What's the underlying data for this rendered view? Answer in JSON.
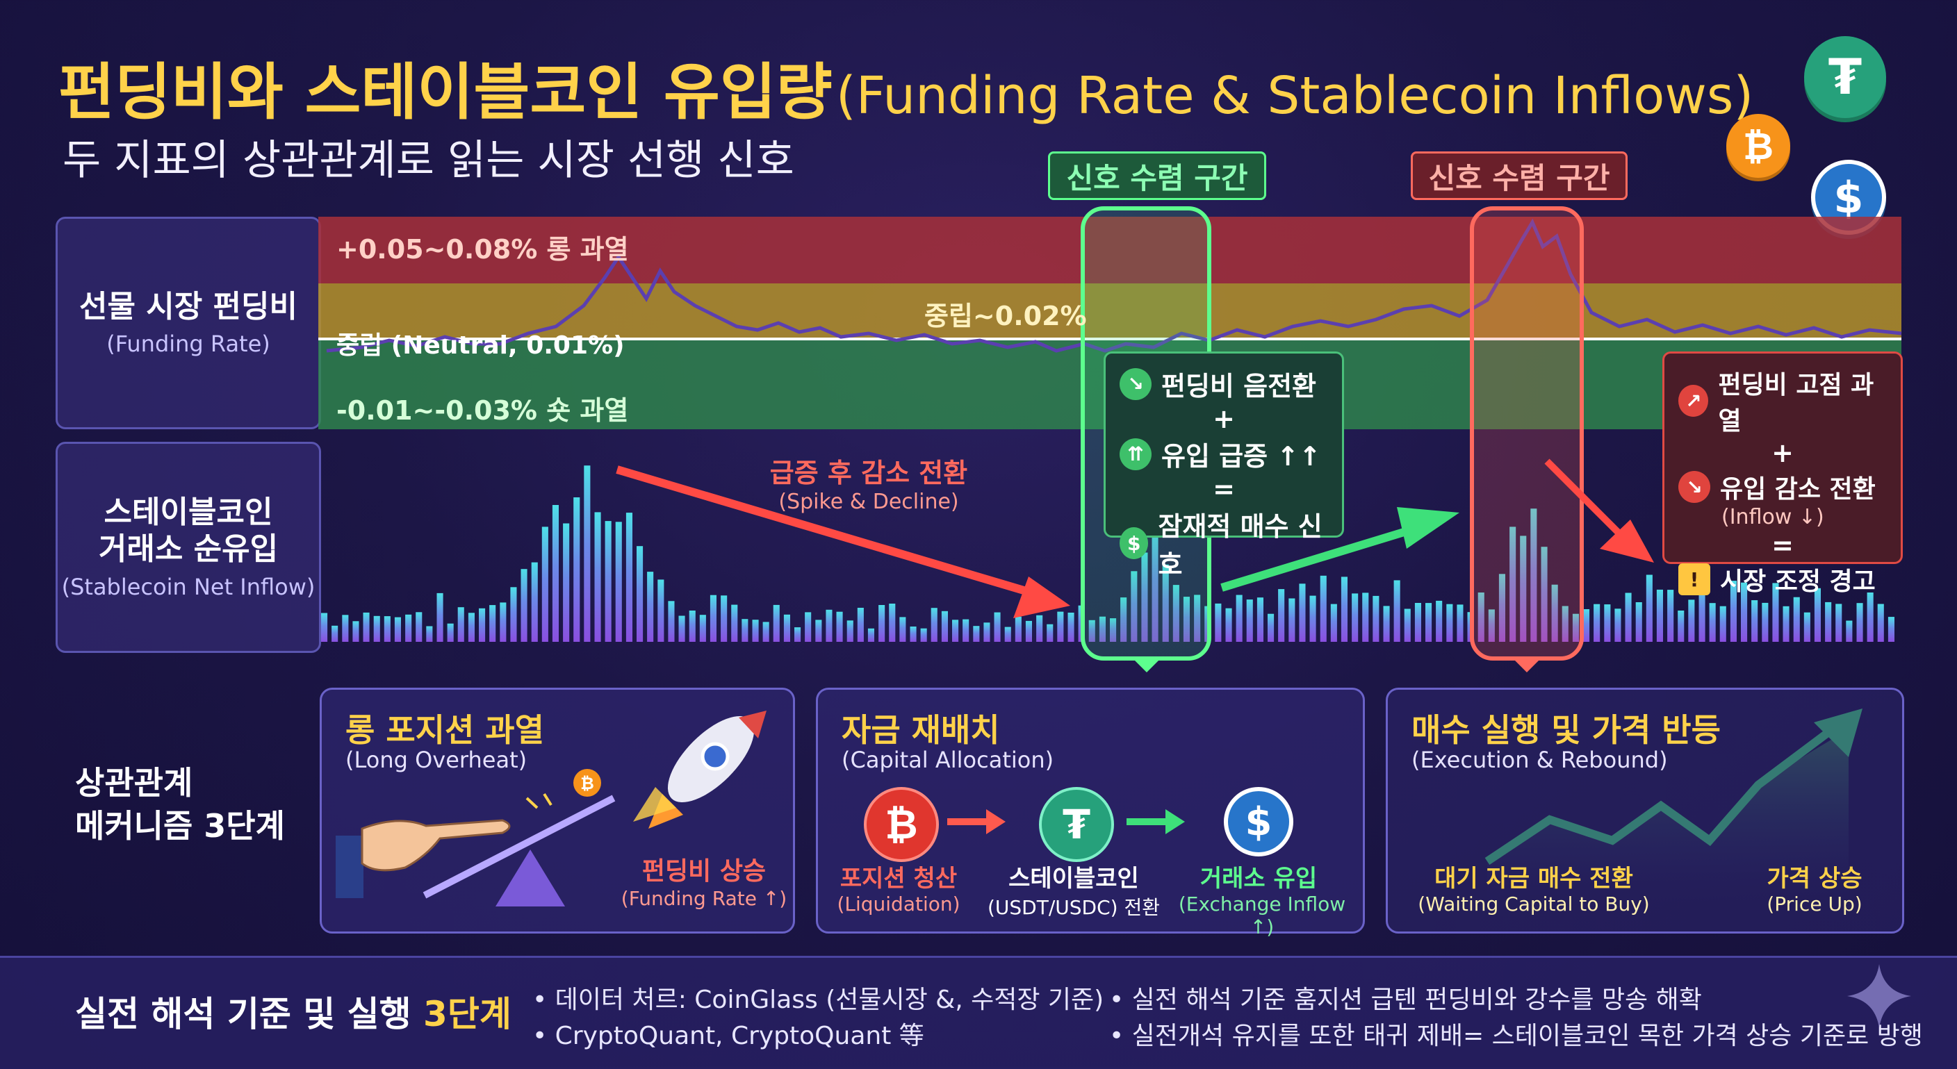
{
  "header": {
    "title_ko": "펀딩비와 스테이블코인 유입량",
    "title_en": "(Funding Rate & Stablecoin Inflows)",
    "subtitle": "두 지표의 상관관계로 읽는 시장 선행 신호"
  },
  "panels": {
    "funding": {
      "ko": "선물 시장 펀딩비",
      "en": "(Funding Rate)"
    },
    "inflow": {
      "ko1": "스테이블코인",
      "ko2": "거래소 순유입",
      "en": "(Stablecoin Net Inflow)"
    }
  },
  "zones": {
    "long": "+0.05~0.08% 롱 과열",
    "neutral_top": "중립~0.02%",
    "neutral": "중립 (Neutral, 0.01%)",
    "short": "-0.01~-0.03% 숏 과열"
  },
  "signals": {
    "green_label": "신호 수렴 구간",
    "red_label": "신호 수렴 구간",
    "green_box": {
      "l1": "펀딩비 음전환",
      "plus": "+",
      "l2": "유입 급증 ↑↑",
      "eq": "=",
      "l3": "잠재적 매수 신호"
    },
    "red_box": {
      "l1": "펀딩비 고점 과열",
      "plus": "+",
      "l2": "유입 감소 전환",
      "l2e": "(Inflow ↓)",
      "eq": "=",
      "l3": "시장 조정 경고"
    },
    "spike_ko": "급증 후 감소 전환",
    "spike_en": "(Spike & Decline)"
  },
  "mechanism": {
    "label1": "상관관계",
    "label2": "메커니즘 3단계",
    "card1": {
      "h": "롱 포지션 과열",
      "he": "(Long Overheat)",
      "cap": "펀딩비 상승",
      "cape": "(Funding Rate ↑)"
    },
    "card2": {
      "h": "자금 재배치",
      "he": "(Capital Allocation)",
      "a": "포지션 청산",
      "ae": "(Liquidation)",
      "b": "스테이블코인",
      "be": "(USDT/USDC) 전환",
      "c": "거래소 유입",
      "ce": "(Exchange Inflow ↑)"
    },
    "card3": {
      "h": "매수 실행 및 가격 반등",
      "he": "(Execution & Rebound)",
      "a": "대기 자금 매수 전환",
      "ae": "(Waiting Capital to Buy)",
      "b": "가격 상승",
      "be": "(Price Up)"
    }
  },
  "footer": {
    "title_a": "실전 해석 기준 및 실행 ",
    "title_b": "3단계",
    "b1": "• 데이터 처르: CoinGlass (선물시장 &, 수적장 기준)",
    "b2": "• CryptoQuant, CryptoQuant 等",
    "b3": "• 실전 해석 기준 훔지션 급텐 펀딩비와 강수를 망송 해확",
    "b4": "• 실전개석 유지를 또한 태귀 제배= 스테이블코인 목한 가격 상승 기준로 방행"
  },
  "colors": {
    "accent": "#ffd24a",
    "green": "#39e07a",
    "red": "#ff5a4e",
    "usdt": "#26a17b",
    "usdc": "#2775ca",
    "btc": "#f7931a"
  }
}
